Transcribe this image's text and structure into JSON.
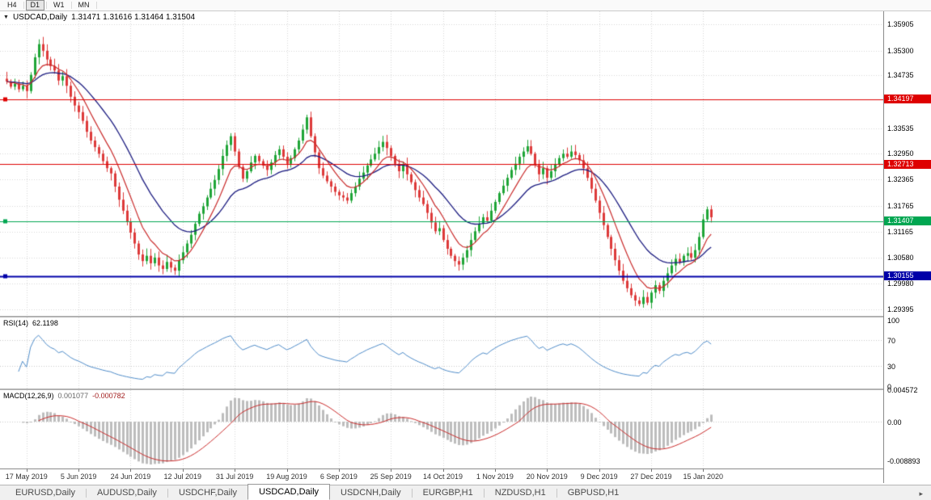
{
  "toolbar": {
    "timeframes": [
      {
        "label": "H4",
        "active": false
      },
      {
        "label": "D1",
        "active": true
      },
      {
        "label": "W1",
        "active": false
      },
      {
        "label": "MN",
        "active": false
      }
    ]
  },
  "chart": {
    "header": {
      "symbol": "USDCAD,Daily",
      "quotes": "1.31471 1.31616 1.31464 1.31504"
    }
  },
  "rsi_panel": {
    "name": "RSI(14)",
    "value": "62.1198"
  },
  "macd_panel": {
    "name": "MACD(12,26,9)",
    "value_main": "0.001077",
    "value_signal": "-0.000782"
  },
  "tabs": {
    "items": [
      {
        "label": "EURUSD,Daily",
        "active": false
      },
      {
        "label": "AUDUSD,Daily",
        "active": false
      },
      {
        "label": "USDCHF,Daily",
        "active": false
      },
      {
        "label": "USDCAD,Daily",
        "active": true
      },
      {
        "label": "USDCNH,Daily",
        "active": false
      },
      {
        "label": "EURGBP,H1",
        "active": false
      },
      {
        "label": "NZDUSD,H1",
        "active": false
      },
      {
        "label": "GBPUSD,H1",
        "active": false
      }
    ],
    "scroll_arrow": "▸"
  },
  "colors": {
    "up": "#1FA537",
    "down": "#DD3A3A",
    "ma_fast": "#C92A2A",
    "ma_slow": "#1C1C80",
    "grid": "#D6D6D6",
    "rsi": "#4E8BC8",
    "macd_hist": "#BDBDBD",
    "macd_signal": "#C92A2A"
  },
  "chart_data": [
    {
      "type": "candlestick",
      "title": "USDCAD,Daily",
      "ohlc_display": {
        "open": 1.31471,
        "high": 1.31616,
        "low": 1.31464,
        "close": 1.31504
      },
      "x_labels": [
        "17 May 2019",
        "5 Jun 2019",
        "24 Jun 2019",
        "12 Jul 2019",
        "31 Jul 2019",
        "19 Aug 2019",
        "6 Sep 2019",
        "25 Sep 2019",
        "14 Oct 2019",
        "1 Nov 2019",
        "20 Nov 2019",
        "9 Dec 2019",
        "27 Dec 2019",
        "15 Jan 2020"
      ],
      "ylim": [
        1.2925,
        1.362
      ],
      "y_ticks": [
        "1.35905",
        "1.35300",
        "1.34735",
        "1.33535",
        "1.32950",
        "1.32365",
        "1.31765",
        "1.31165",
        "1.30580",
        "1.29980",
        "1.29395"
      ],
      "horizontal_lines": [
        {
          "value": 1.34197,
          "label": "1.34197",
          "color": "#DE0000",
          "handle": true,
          "width": 1
        },
        {
          "value": 1.32713,
          "label": "1.32713",
          "color": "#DE0000",
          "handle": false,
          "width": 1
        },
        {
          "value": 1.31407,
          "label": "1.31407",
          "color": "#00A651",
          "handle": true,
          "width": 1
        },
        {
          "value": 1.30155,
          "label": "1.30155",
          "color": "#0000A8",
          "handle": true,
          "width": 2
        }
      ],
      "moving_averages": [
        {
          "type": "ema",
          "period": 8,
          "color": "#C92A2A"
        },
        {
          "type": "ema",
          "period": 21,
          "color": "#1C1C80"
        }
      ],
      "closes": [
        1.346,
        1.3448,
        1.3455,
        1.3442,
        1.345,
        1.3438,
        1.3475,
        1.3515,
        1.3545,
        1.353,
        1.351,
        1.3495,
        1.3485,
        1.3462,
        1.3472,
        1.345,
        1.3425,
        1.3405,
        1.339,
        1.337,
        1.3345,
        1.3325,
        1.331,
        1.3295,
        1.3278,
        1.3262,
        1.325,
        1.322,
        1.319,
        1.3165,
        1.314,
        1.3115,
        1.309,
        1.3065,
        1.305,
        1.3062,
        1.3045,
        1.3058,
        1.304,
        1.3032,
        1.3048,
        1.3035,
        1.3028,
        1.3052,
        1.307,
        1.309,
        1.311,
        1.3135,
        1.3158,
        1.3175,
        1.3195,
        1.3215,
        1.3235,
        1.326,
        1.329,
        1.3315,
        1.3335,
        1.33,
        1.3265,
        1.3238,
        1.3255,
        1.3275,
        1.329,
        1.3278,
        1.3268,
        1.3258,
        1.3275,
        1.3292,
        1.3305,
        1.3288,
        1.3272,
        1.3285,
        1.3305,
        1.3325,
        1.335,
        1.3378,
        1.3335,
        1.3298,
        1.3262,
        1.3245,
        1.3232,
        1.322,
        1.3208,
        1.32,
        1.3195,
        1.3188,
        1.3205,
        1.322,
        1.3238,
        1.3252,
        1.3268,
        1.3282,
        1.3295,
        1.331,
        1.3322,
        1.3308,
        1.329,
        1.3272,
        1.3255,
        1.327,
        1.3248,
        1.323,
        1.3212,
        1.3195,
        1.318,
        1.316,
        1.3138,
        1.3118,
        1.3125,
        1.3098,
        1.3078,
        1.3062,
        1.305,
        1.3042,
        1.3058,
        1.3075,
        1.3098,
        1.3118,
        1.3135,
        1.315,
        1.3142,
        1.3165,
        1.3185,
        1.3205,
        1.3222,
        1.324,
        1.3258,
        1.3272,
        1.3288,
        1.33,
        1.3312,
        1.3295,
        1.327,
        1.3248,
        1.3262,
        1.324,
        1.3255,
        1.327,
        1.3285,
        1.3295,
        1.3288,
        1.33,
        1.3292,
        1.328,
        1.3262,
        1.324,
        1.3215,
        1.3188,
        1.316,
        1.3132,
        1.3105,
        1.3078,
        1.3052,
        1.3028,
        1.3005,
        1.2988,
        1.2972,
        1.296,
        1.2952,
        1.2968,
        1.2955,
        1.2978,
        1.2995,
        1.2982,
        1.3005,
        1.3022,
        1.304,
        1.3055,
        1.3048,
        1.3062,
        1.3068,
        1.3058,
        1.3075,
        1.3105,
        1.3145,
        1.3168,
        1.315
      ]
    },
    {
      "type": "line",
      "name": "RSI",
      "params": "14",
      "current_value": 62.1198,
      "range": [
        0,
        100
      ],
      "levels": [
        70,
        30
      ],
      "axis_ticks": [
        "100",
        "70",
        "30",
        "0"
      ],
      "color": "#4E8BC8",
      "source": "derived from closes of chart_data[0]"
    },
    {
      "type": "histogram+line",
      "name": "MACD",
      "params": "12,26,9",
      "current_values": [
        0.001077,
        -0.000782
      ],
      "axis_ticks": [
        "0.004572",
        "0.00",
        "-0.008893"
      ],
      "histogram_color": "#BDBDBD",
      "signal_color": "#C92A2A",
      "source": "derived from closes of chart_data[0]"
    }
  ]
}
